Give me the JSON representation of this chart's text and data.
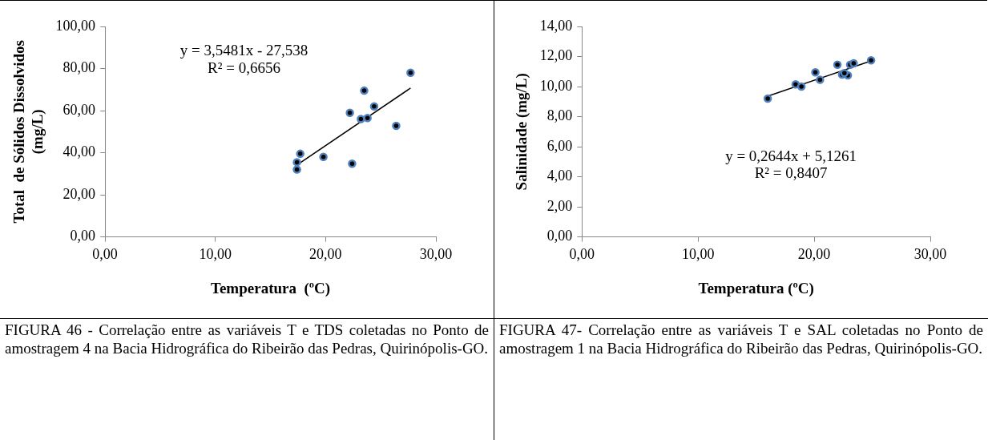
{
  "chart_data": [
    {
      "type": "scatter",
      "xlabel": "Temperatura  (ºC)",
      "ylabel": "Total  de Sólidos Dissolvidos\n(mg/L)",
      "xlim": [
        0,
        30
      ],
      "ylim": [
        0,
        100
      ],
      "xticks": [
        {
          "value": 0,
          "label": "0,00"
        },
        {
          "value": 10,
          "label": "10,00"
        },
        {
          "value": 20,
          "label": "20,00"
        },
        {
          "value": 30,
          "label": "30,00"
        }
      ],
      "yticks": [
        {
          "value": 0,
          "label": "0,00"
        },
        {
          "value": 20,
          "label": "20,00"
        },
        {
          "value": 40,
          "label": "40,00"
        },
        {
          "value": 60,
          "label": "60,00"
        },
        {
          "value": 80,
          "label": "80,00"
        },
        {
          "value": 100,
          "label": "100,00"
        }
      ],
      "grid": false,
      "legend": false,
      "series": [
        {
          "marker": "circle",
          "color": "#4f81bd",
          "x": [
            27.7,
            23.5,
            24.4,
            22.2,
            23.2,
            23.8,
            26.4,
            17.7,
            19.8,
            17.4,
            22.4,
            17.4
          ],
          "values": [
            78,
            69.5,
            62,
            59,
            56,
            56.5,
            52.8,
            39.5,
            38,
            35.5,
            34.8,
            32
          ]
        },
        {
          "type": "line",
          "marker": "none",
          "color": "#000000",
          "x": [
            17.4,
            27.7
          ],
          "values": [
            34.2,
            70.7
          ]
        }
      ],
      "annotations": [
        "y = 3,5481x - 27,538",
        "R² = 0,6656",
        "FIGURA 46 - Correlação entre as variáveis T e TDS coletadas no Ponto de amostragem 4 na Bacia Hidrográfica do Ribeirão das Pedras, Quirinópolis-GO."
      ]
    },
    {
      "type": "scatter",
      "xlabel": "Temperatura (ºC)",
      "ylabel": "Salinidade (mg/L)",
      "xlim": [
        0,
        30
      ],
      "ylim": [
        0,
        14
      ],
      "xticks": [
        {
          "value": 0,
          "label": "0,00"
        },
        {
          "value": 10,
          "label": "10,00"
        },
        {
          "value": 20,
          "label": "20,00"
        },
        {
          "value": 30,
          "label": "30,00"
        }
      ],
      "yticks": [
        {
          "value": 0,
          "label": "0,00"
        },
        {
          "value": 2,
          "label": "2,00"
        },
        {
          "value": 4,
          "label": "4,00"
        },
        {
          "value": 6,
          "label": "6,00"
        },
        {
          "value": 8,
          "label": "8,00"
        },
        {
          "value": 10,
          "label": "10,00"
        },
        {
          "value": 12,
          "label": "12,00"
        },
        {
          "value": 14,
          "label": "14,00"
        }
      ],
      "grid": false,
      "legend": false,
      "series": [
        {
          "marker": "circle",
          "color": "#4f81bd",
          "x": [
            16.0,
            18.4,
            18.9,
            20.1,
            20.5,
            22.0,
            22.4,
            22.9,
            22.6,
            23.1,
            23.4,
            24.9
          ],
          "values": [
            9.2,
            10.15,
            10.0,
            10.95,
            10.45,
            11.45,
            10.8,
            10.75,
            10.9,
            11.45,
            11.55,
            11.75
          ]
        },
        {
          "type": "line",
          "marker": "none",
          "color": "#000000",
          "x": [
            16.0,
            24.9
          ],
          "values": [
            9.36,
            11.71
          ]
        }
      ],
      "annotations": [
        "y = 0,2644x + 5,1261",
        "R² = 0,8407",
        "FIGURA 47- Correlação entre as variáveis T e SAL coletadas no Ponto de amostragem 1 na Bacia Hidrográfica do Ribeirão das Pedras, Quirinópolis-GO."
      ]
    }
  ]
}
